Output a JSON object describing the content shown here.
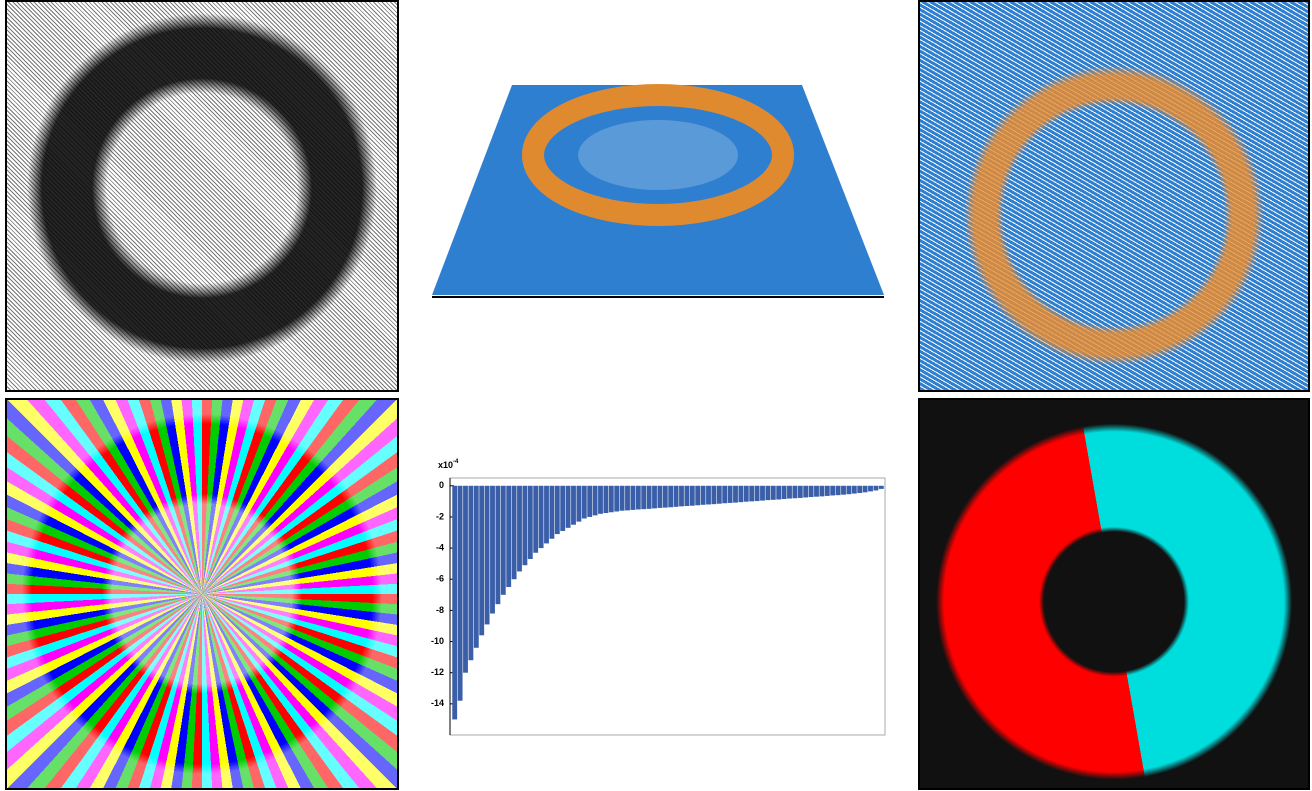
{
  "chart_data": {
    "type": "bar",
    "color": "#3a5fa8",
    "y_scale_label": {
      "base": "x10",
      "exponent": "-4"
    },
    "values": [
      -15,
      -13.8,
      -12,
      -11.2,
      -10.4,
      -9.6,
      -8.9,
      -8.2,
      -7.6,
      -7.0,
      -6.5,
      -6.0,
      -5.5,
      -5.1,
      -4.7,
      -4.3,
      -4.0,
      -3.7,
      -3.4,
      -3.1,
      -2.9,
      -2.7,
      -2.5,
      -2.3,
      -2.1,
      -2.0,
      -1.9,
      -1.8,
      -1.75,
      -1.7,
      -1.65,
      -1.6,
      -1.58,
      -1.55,
      -1.52,
      -1.5,
      -1.48,
      -1.45,
      -1.42,
      -1.4,
      -1.38,
      -1.35,
      -1.32,
      -1.3,
      -1.28,
      -1.25,
      -1.22,
      -1.2,
      -1.18,
      -1.15,
      -1.12,
      -1.1,
      -1.08,
      -1.05,
      -1.02,
      -1.0,
      -0.98,
      -0.95,
      -0.92,
      -0.9,
      -0.88,
      -0.85,
      -0.82,
      -0.8,
      -0.78,
      -0.75,
      -0.72,
      -0.7,
      -0.68,
      -0.65,
      -0.62,
      -0.6,
      -0.57,
      -0.54,
      -0.5,
      -0.46,
      -0.42,
      -0.36,
      -0.3,
      -0.2
    ],
    "ylim": [
      -16,
      0.5
    ],
    "yticks": [
      0,
      -2,
      -4,
      -6,
      -8,
      -10,
      -12,
      -14
    ]
  }
}
